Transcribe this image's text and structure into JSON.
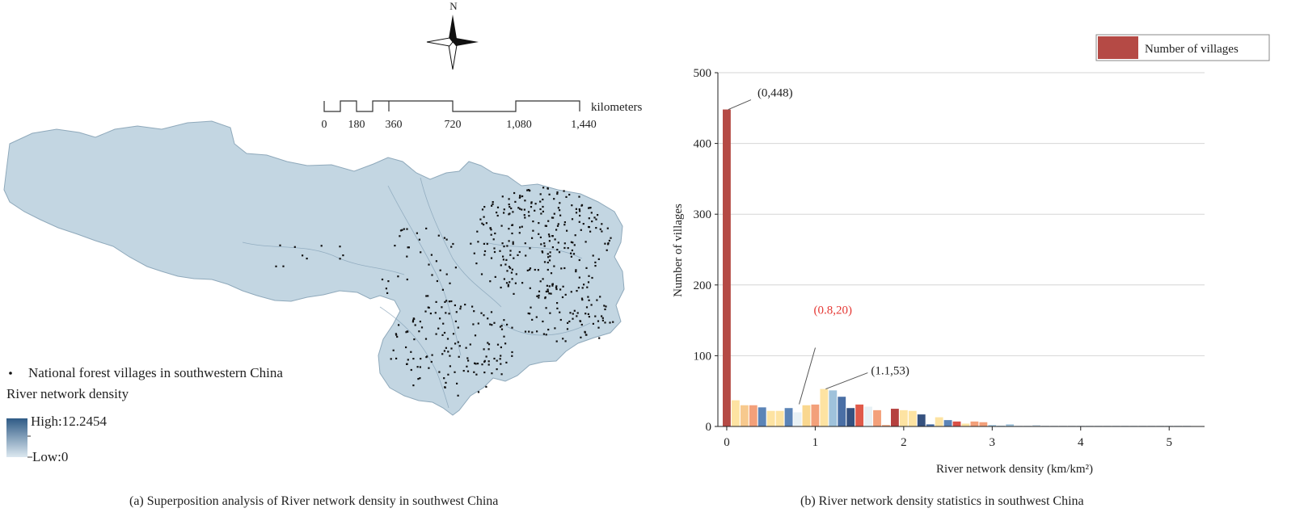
{
  "map": {
    "north_label": "N",
    "scale_unit": "kilometers",
    "scale_ticks": [
      "0",
      "180",
      "360",
      "720",
      "1,080",
      "1,440"
    ],
    "legend_villages": "National forest villages in southwestern China",
    "legend_density_title": "River network density",
    "legend_high": "High:12.2454",
    "legend_low": "Low:0",
    "caption": "(a) Superposition analysis of River network density in southwest China",
    "colors": {
      "region_fill": "#c3d6e2",
      "region_stroke": "#8fa9bb",
      "ramp_high": "#2f5b86",
      "ramp_low": "#dce8f0"
    }
  },
  "chart_data": {
    "type": "bar",
    "title": "",
    "xlabel": "River network density (km/km²)",
    "ylabel": "Number of villages",
    "xlim": [
      -0.1,
      5.4
    ],
    "ylim": [
      0,
      500
    ],
    "xticks": [
      0,
      1,
      2,
      3,
      4,
      5
    ],
    "yticks": [
      0,
      100,
      200,
      300,
      400,
      500
    ],
    "grid": true,
    "legend": {
      "position": "top-right",
      "label": "Number of villages",
      "color": "#b54a45"
    },
    "bin_width": 0.1,
    "x": [
      0,
      0.1,
      0.2,
      0.3,
      0.4,
      0.5,
      0.6,
      0.7,
      0.8,
      0.9,
      1.0,
      1.1,
      1.2,
      1.3,
      1.4,
      1.5,
      1.6,
      1.7,
      1.8,
      1.9,
      2.0,
      2.1,
      2.2,
      2.3,
      2.4,
      2.5,
      2.6,
      2.7,
      2.8,
      2.9,
      3.0,
      3.1,
      3.2,
      3.3,
      3.4,
      3.5,
      3.6,
      3.7,
      3.8,
      3.9,
      4.0,
      4.1,
      4.2,
      4.3,
      4.4,
      4.5,
      4.6,
      4.7,
      4.8,
      4.9,
      5.0,
      5.1,
      5.2
    ],
    "values": [
      448,
      37,
      30,
      30,
      27,
      22,
      22,
      26,
      20,
      30,
      31,
      53,
      51,
      42,
      26,
      31,
      28,
      23,
      2,
      25,
      23,
      22,
      17,
      3,
      13,
      9,
      7,
      4,
      7,
      6,
      2,
      1,
      3,
      1,
      1,
      2,
      1,
      1,
      1,
      1,
      1,
      1,
      1,
      1,
      1,
      1,
      1,
      1,
      1,
      1,
      1,
      1,
      1
    ],
    "colors": [
      "#b54a45",
      "#fde3a2",
      "#f7c98e",
      "#f3a07a",
      "#5b84b7",
      "#fde3a2",
      "#fde3a2",
      "#5b84b7",
      "#e8f1f5",
      "#f9d78f",
      "#f3a07a",
      "#fde3a2",
      "#9fc2db",
      "#4a6fa5",
      "#35517f",
      "#e05a4a",
      "#e8f1f5",
      "#f3a07a",
      "#f3a07a",
      "#b5403e",
      "#fde3a2",
      "#fde3a2",
      "#35517f",
      "#4a6fa5",
      "#fde3a2",
      "#5b84b7",
      "#d94f45",
      "#fde3a2",
      "#f3a07a",
      "#f3a07a",
      "#9fc2db",
      "#9fc2db",
      "#9fc2db",
      "#c9d9e6",
      "#c9d9e6",
      "#c9d9e6",
      "#c9d9e6",
      "#c9d9e6",
      "#c9d9e6",
      "#c9d9e6",
      "#c9d9e6",
      "#c9d9e6",
      "#c9d9e6",
      "#c9d9e6",
      "#c9d9e6",
      "#c9d9e6",
      "#c9d9e6",
      "#c9d9e6",
      "#c9d9e6",
      "#c9d9e6",
      "#c9d9e6",
      "#c9d9e6",
      "#c9d9e6"
    ],
    "annotations": [
      {
        "text": "(0,448)",
        "x": 0,
        "y": 448,
        "color": "#222222"
      },
      {
        "text": "(0.8,20)",
        "x": 0.8,
        "y": 20,
        "color": "#e53935"
      },
      {
        "text": "(1.1,53)",
        "x": 1.1,
        "y": 53,
        "color": "#222222"
      }
    ],
    "caption": "(b) River network density statistics in southwest China"
  }
}
